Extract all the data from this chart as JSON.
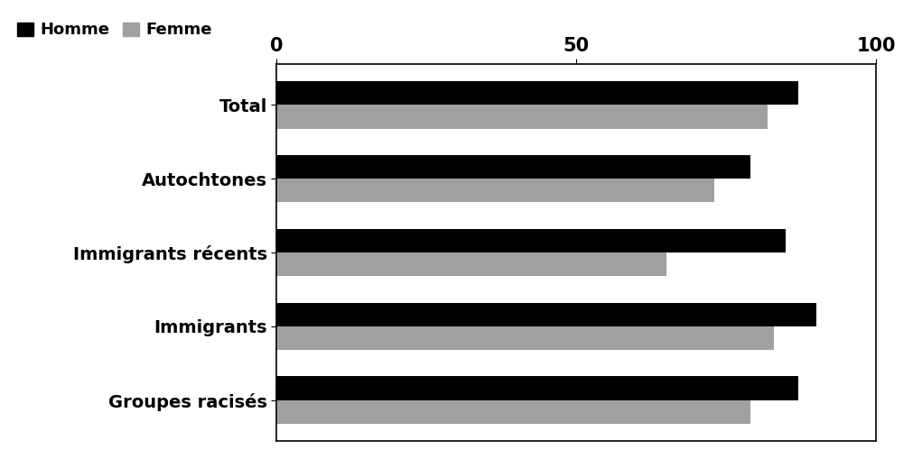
{
  "categories": [
    "Total",
    "Autochtones",
    "Immigrants récents",
    "Immigrants",
    "Groupes racisés"
  ],
  "homme_values": [
    87,
    79,
    85,
    90,
    87
  ],
  "femme_values": [
    82,
    73,
    65,
    83,
    79
  ],
  "homme_color": "#000000",
  "femme_color": "#a0a0a0",
  "xlim": [
    0,
    100
  ],
  "xticks": [
    0,
    50,
    100
  ],
  "legend_homme": "Homme",
  "legend_femme": "Femme",
  "bar_height": 0.32,
  "background_color": "#ffffff",
  "tick_fontsize": 15,
  "legend_fontsize": 13,
  "category_fontsize": 14
}
